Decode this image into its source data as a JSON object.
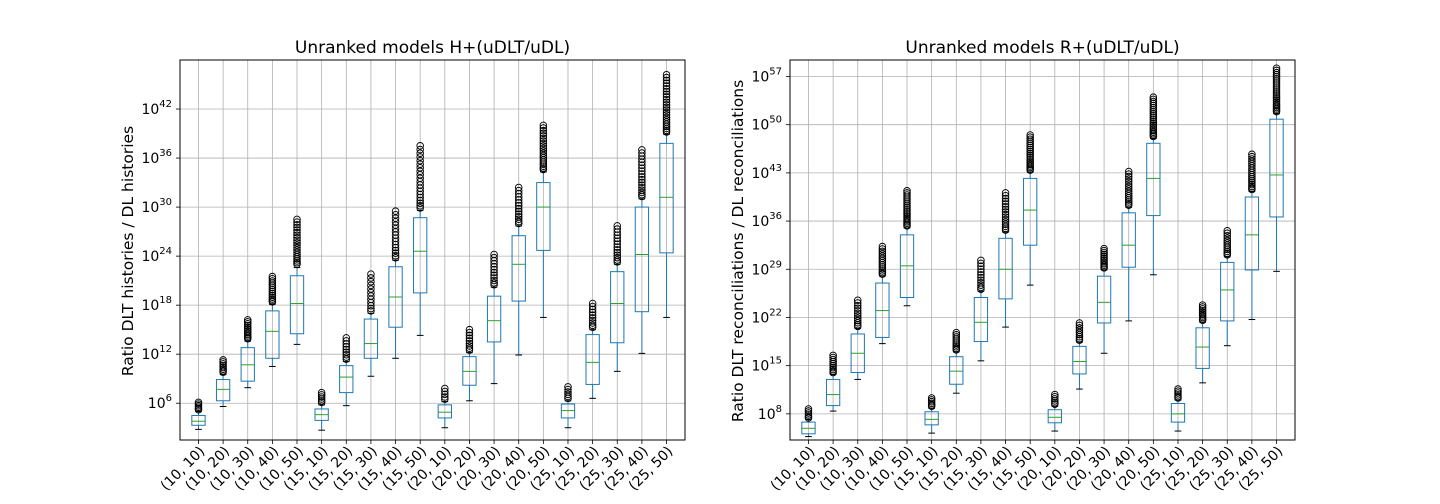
{
  "chart_data": [
    {
      "type": "box",
      "title": "Unranked models H+(uDLT/uDL)",
      "ylabel": "Ratio DLT histories / DL histories",
      "xlabel": "",
      "yscale": "log",
      "ylim_exp": [
        1.5,
        48
      ],
      "ytick_exps": [
        6,
        12,
        18,
        24,
        30,
        36,
        42
      ],
      "ytick_labels": [
        "10^6",
        "10^12",
        "10^18",
        "10^24",
        "10^30",
        "10^36",
        "10^42"
      ],
      "grid": true,
      "categories": [
        "(10, 10)",
        "(10, 20)",
        "(10, 30)",
        "(10, 40)",
        "(10, 50)",
        "(15, 10)",
        "(15, 20)",
        "(15, 30)",
        "(15, 40)",
        "(15, 50)",
        "(20, 10)",
        "(20, 20)",
        "(20, 30)",
        "(20, 40)",
        "(20, 50)",
        "(25, 10)",
        "(25, 20)",
        "(25, 30)",
        "(25, 40)",
        "(25, 50)"
      ],
      "boxes_log10": [
        {
          "whisker_low": 2.8,
          "q1": 3.3,
          "median": 3.8,
          "q3": 4.5,
          "whisker_high": 5.0,
          "outliers_low": 5.2,
          "outliers_high": 6.1,
          "n_outliers": 6
        },
        {
          "whisker_low": 5.6,
          "q1": 6.3,
          "median": 7.7,
          "q3": 8.9,
          "whisker_high": 9.5,
          "outliers_low": 9.8,
          "outliers_high": 11.3,
          "n_outliers": 8
        },
        {
          "whisker_low": 7.9,
          "q1": 8.7,
          "median": 10.7,
          "q3": 12.8,
          "whisker_high": 13.6,
          "outliers_low": 13.9,
          "outliers_high": 16.2,
          "n_outliers": 12
        },
        {
          "whisker_low": 10.5,
          "q1": 11.5,
          "median": 14.8,
          "q3": 17.3,
          "whisker_high": 18.1,
          "outliers_low": 18.4,
          "outliers_high": 21.5,
          "n_outliers": 14
        },
        {
          "whisker_low": 13.2,
          "q1": 14.5,
          "median": 18.2,
          "q3": 21.6,
          "whisker_high": 22.6,
          "outliers_low": 23.0,
          "outliers_high": 28.5,
          "n_outliers": 20
        },
        {
          "whisker_low": 2.7,
          "q1": 3.9,
          "median": 4.6,
          "q3": 5.3,
          "whisker_high": 5.8,
          "outliers_low": 6.1,
          "outliers_high": 7.3,
          "n_outliers": 6
        },
        {
          "whisker_low": 5.7,
          "q1": 7.3,
          "median": 9.2,
          "q3": 10.6,
          "whisker_high": 11.1,
          "outliers_low": 11.4,
          "outliers_high": 14.0,
          "n_outliers": 9
        },
        {
          "whisker_low": 9.3,
          "q1": 11.5,
          "median": 13.3,
          "q3": 16.3,
          "whisker_high": 17.0,
          "outliers_low": 17.3,
          "outliers_high": 21.8,
          "n_outliers": 12
        },
        {
          "whisker_low": 11.5,
          "q1": 15.3,
          "median": 19.0,
          "q3": 22.7,
          "whisker_high": 23.5,
          "outliers_low": 23.8,
          "outliers_high": 29.5,
          "n_outliers": 16
        },
        {
          "whisker_low": 14.3,
          "q1": 19.5,
          "median": 24.6,
          "q3": 28.7,
          "whisker_high": 29.6,
          "outliers_low": 29.9,
          "outliers_high": 37.5,
          "n_outliers": 20
        },
        {
          "whisker_low": 3.0,
          "q1": 4.2,
          "median": 4.9,
          "q3": 5.8,
          "whisker_high": 6.2,
          "outliers_low": 6.5,
          "outliers_high": 7.8,
          "n_outliers": 5
        },
        {
          "whisker_low": 6.3,
          "q1": 8.2,
          "median": 9.9,
          "q3": 11.7,
          "whisker_high": 12.2,
          "outliers_low": 12.5,
          "outliers_high": 15.0,
          "n_outliers": 9
        },
        {
          "whisker_low": 8.4,
          "q1": 13.5,
          "median": 16.1,
          "q3": 19.1,
          "whisker_high": 20.2,
          "outliers_low": 20.5,
          "outliers_high": 24.2,
          "n_outliers": 12
        },
        {
          "whisker_low": 11.9,
          "q1": 18.5,
          "median": 23.0,
          "q3": 26.5,
          "whisker_high": 27.7,
          "outliers_low": 28.0,
          "outliers_high": 32.4,
          "n_outliers": 14
        },
        {
          "whisker_low": 16.5,
          "q1": 24.7,
          "median": 30.0,
          "q3": 33.0,
          "whisker_high": 34.3,
          "outliers_low": 34.6,
          "outliers_high": 40.0,
          "n_outliers": 20
        },
        {
          "whisker_low": 3.0,
          "q1": 4.2,
          "median": 5.1,
          "q3": 5.9,
          "whisker_high": 6.3,
          "outliers_low": 6.6,
          "outliers_high": 8.0,
          "n_outliers": 6
        },
        {
          "whisker_low": 6.6,
          "q1": 8.3,
          "median": 11.0,
          "q3": 14.4,
          "whisker_high": 15.0,
          "outliers_low": 15.3,
          "outliers_high": 18.2,
          "n_outliers": 10
        },
        {
          "whisker_low": 9.9,
          "q1": 13.4,
          "median": 18.2,
          "q3": 22.1,
          "whisker_high": 23.0,
          "outliers_low": 23.3,
          "outliers_high": 27.7,
          "n_outliers": 14
        },
        {
          "whisker_low": 12.1,
          "q1": 17.2,
          "median": 24.2,
          "q3": 30.0,
          "whisker_high": 31.0,
          "outliers_low": 31.3,
          "outliers_high": 37.0,
          "n_outliers": 18
        },
        {
          "whisker_low": 16.5,
          "q1": 24.4,
          "median": 31.2,
          "q3": 37.8,
          "whisker_high": 38.9,
          "outliers_low": 39.2,
          "outliers_high": 46.2,
          "n_outliers": 24
        }
      ]
    },
    {
      "type": "box",
      "title": "Unranked models R+(uDLT/uDL)",
      "ylabel": "Ratio DLT reconciliations / DL reconciliations",
      "xlabel": "",
      "yscale": "log",
      "ylim_exp": [
        4.2,
        59.4
      ],
      "ytick_exps": [
        8,
        15,
        22,
        29,
        36,
        43,
        50,
        57
      ],
      "ytick_labels": [
        "10^8",
        "10^15",
        "10^22",
        "10^29",
        "10^36",
        "10^43",
        "10^50",
        "10^57"
      ],
      "grid": true,
      "categories": [
        "(10, 10)",
        "(10, 20)",
        "(10, 30)",
        "(10, 40)",
        "(10, 50)",
        "(15, 10)",
        "(15, 20)",
        "(15, 30)",
        "(15, 40)",
        "(15, 50)",
        "(20, 10)",
        "(20, 20)",
        "(20, 30)",
        "(20, 40)",
        "(20, 50)",
        "(25, 10)",
        "(25, 20)",
        "(25, 30)",
        "(25, 40)",
        "(25, 50)"
      ],
      "boxes_log10": [
        {
          "whisker_low": 4.7,
          "q1": 5.1,
          "median": 5.9,
          "q3": 6.8,
          "whisker_high": 7.2,
          "outliers_low": 7.4,
          "outliers_high": 8.7,
          "n_outliers": 6
        },
        {
          "whisker_low": 8.4,
          "q1": 9.2,
          "median": 10.8,
          "q3": 13.0,
          "whisker_high": 13.7,
          "outliers_low": 14.0,
          "outliers_high": 16.5,
          "n_outliers": 10
        },
        {
          "whisker_low": 13.0,
          "q1": 14.0,
          "median": 16.8,
          "q3": 19.6,
          "whisker_high": 20.4,
          "outliers_low": 20.7,
          "outliers_high": 24.5,
          "n_outliers": 12
        },
        {
          "whisker_low": 18.2,
          "q1": 19.1,
          "median": 23.0,
          "q3": 27.0,
          "whisker_high": 28.0,
          "outliers_low": 28.3,
          "outliers_high": 32.3,
          "n_outliers": 14
        },
        {
          "whisker_low": 23.7,
          "q1": 24.9,
          "median": 29.5,
          "q3": 34.0,
          "whisker_high": 35.0,
          "outliers_low": 35.3,
          "outliers_high": 40.4,
          "n_outliers": 20
        },
        {
          "whisker_low": 5.2,
          "q1": 6.4,
          "median": 7.2,
          "q3": 8.3,
          "whisker_high": 8.8,
          "outliers_low": 9.1,
          "outliers_high": 10.3,
          "n_outliers": 6
        },
        {
          "whisker_low": 11.0,
          "q1": 12.3,
          "median": 14.2,
          "q3": 16.3,
          "whisker_high": 17.0,
          "outliers_low": 17.3,
          "outliers_high": 19.8,
          "n_outliers": 10
        },
        {
          "whisker_low": 15.7,
          "q1": 18.5,
          "median": 21.3,
          "q3": 24.9,
          "whisker_high": 25.8,
          "outliers_low": 26.1,
          "outliers_high": 30.3,
          "n_outliers": 12
        },
        {
          "whisker_low": 20.6,
          "q1": 24.7,
          "median": 29.0,
          "q3": 33.5,
          "whisker_high": 34.4,
          "outliers_low": 34.7,
          "outliers_high": 40.1,
          "n_outliers": 16
        },
        {
          "whisker_low": 26.7,
          "q1": 32.5,
          "median": 37.6,
          "q3": 42.2,
          "whisker_high": 43.1,
          "outliers_low": 43.4,
          "outliers_high": 48.5,
          "n_outliers": 20
        },
        {
          "whisker_low": 5.5,
          "q1": 6.7,
          "median": 7.5,
          "q3": 8.6,
          "whisker_high": 9.1,
          "outliers_low": 9.4,
          "outliers_high": 10.8,
          "n_outliers": 6
        },
        {
          "whisker_low": 11.6,
          "q1": 13.8,
          "median": 15.6,
          "q3": 17.8,
          "whisker_high": 18.4,
          "outliers_low": 18.7,
          "outliers_high": 21.2,
          "n_outliers": 9
        },
        {
          "whisker_low": 16.8,
          "q1": 21.2,
          "median": 24.2,
          "q3": 28.0,
          "whisker_high": 28.9,
          "outliers_low": 29.2,
          "outliers_high": 32.0,
          "n_outliers": 12
        },
        {
          "whisker_low": 21.5,
          "q1": 29.3,
          "median": 32.5,
          "q3": 37.2,
          "whisker_high": 38.0,
          "outliers_low": 38.3,
          "outliers_high": 43.2,
          "n_outliers": 16
        },
        {
          "whisker_low": 28.2,
          "q1": 36.8,
          "median": 42.2,
          "q3": 47.3,
          "whisker_high": 48.0,
          "outliers_low": 48.3,
          "outliers_high": 54.0,
          "n_outliers": 22
        },
        {
          "whisker_low": 5.5,
          "q1": 6.8,
          "median": 8.0,
          "q3": 9.5,
          "whisker_high": 10.0,
          "outliers_low": 10.3,
          "outliers_high": 11.6,
          "n_outliers": 6
        },
        {
          "whisker_low": 12.5,
          "q1": 14.6,
          "median": 17.7,
          "q3": 20.5,
          "whisker_high": 21.3,
          "outliers_low": 21.6,
          "outliers_high": 23.8,
          "n_outliers": 10
        },
        {
          "whisker_low": 17.9,
          "q1": 21.5,
          "median": 26.0,
          "q3": 30.0,
          "whisker_high": 30.8,
          "outliers_low": 31.1,
          "outliers_high": 34.6,
          "n_outliers": 12
        },
        {
          "whisker_low": 21.7,
          "q1": 28.9,
          "median": 34.0,
          "q3": 39.5,
          "whisker_high": 40.3,
          "outliers_low": 40.6,
          "outliers_high": 45.7,
          "n_outliers": 18
        },
        {
          "whisker_low": 28.7,
          "q1": 36.6,
          "median": 42.7,
          "q3": 50.8,
          "whisker_high": 51.6,
          "outliers_low": 51.9,
          "outliers_high": 58.2,
          "n_outliers": 24
        }
      ]
    }
  ]
}
